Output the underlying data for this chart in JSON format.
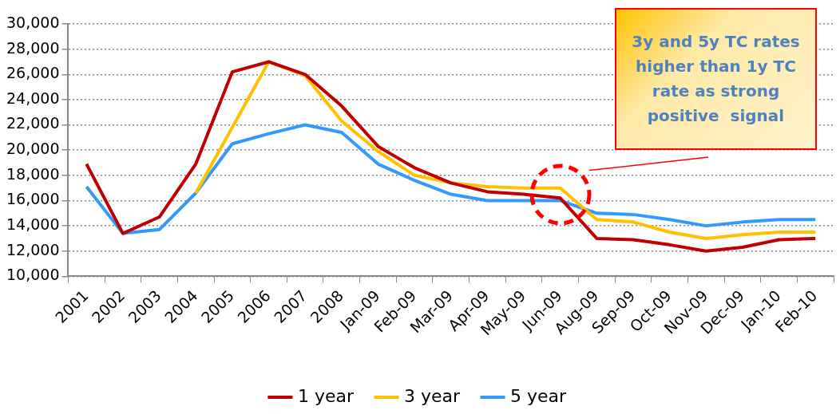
{
  "chart_data": {
    "type": "line",
    "categories": [
      "2001",
      "2002",
      "2003",
      "2004",
      "2005",
      "2006",
      "2007",
      "2008",
      "Jan-09",
      "Feb-09",
      "Mar-09",
      "Apr-09",
      "May-09",
      "Jun-09",
      "Aug-09",
      "Sep-09",
      "Oct-09",
      "Nov-09",
      "Dec-09",
      "Jan-10",
      "Feb-10"
    ],
    "series": [
      {
        "name": "1 year",
        "color": "#c00000",
        "values": [
          18900,
          13400,
          14700,
          18900,
          26200,
          27000,
          26000,
          23500,
          20300,
          18600,
          17400,
          16700,
          16500,
          16200,
          13000,
          12900,
          12500,
          12000,
          12300,
          12900,
          13000
        ]
      },
      {
        "name": "3 year",
        "color": "#ffc000",
        "values": [
          null,
          null,
          null,
          16600,
          21800,
          27000,
          25900,
          22300,
          19900,
          18000,
          17400,
          17100,
          17000,
          17000,
          14500,
          14300,
          13500,
          13000,
          13300,
          13500,
          13500
        ]
      },
      {
        "name": "5 year",
        "color": "#3399ff",
        "values": [
          17100,
          13400,
          13700,
          16600,
          20500,
          21300,
          22000,
          21400,
          18900,
          17600,
          16500,
          16000,
          16000,
          16000,
          15000,
          14900,
          14500,
          14000,
          14300,
          14500,
          14500
        ]
      }
    ],
    "ylim": [
      10000,
      30000
    ],
    "yticks": [
      {
        "value": 10000,
        "label": "10,000"
      },
      {
        "value": 12000,
        "label": "12,000"
      },
      {
        "value": 14000,
        "label": "14,000"
      },
      {
        "value": 16000,
        "label": "16,000"
      },
      {
        "value": 18000,
        "label": "18,000"
      },
      {
        "value": 20000,
        "label": "20,000"
      },
      {
        "value": 22000,
        "label": "22,000"
      },
      {
        "value": 24000,
        "label": "24,000"
      },
      {
        "value": 26000,
        "label": "26,000"
      },
      {
        "value": 28000,
        "label": "28,000"
      },
      {
        "value": 30000,
        "label": "30,000"
      }
    ],
    "grid": "y",
    "legend": "bottom",
    "marker": "none",
    "line_style": "solid",
    "annotations": [
      "3y and 5y TC rates higher than 1y TC rate as strong positive  signal"
    ]
  }
}
